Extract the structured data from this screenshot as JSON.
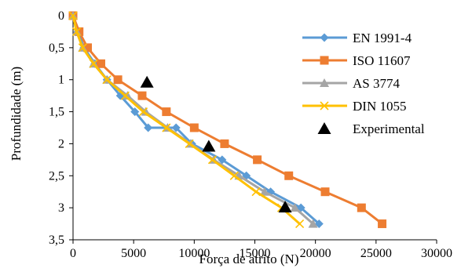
{
  "chart_data": {
    "type": "line",
    "title": "",
    "xlabel": "Força de atrito (N)",
    "ylabel": "Profundidade (m)",
    "xlim": [
      0,
      30000
    ],
    "ylim": [
      0,
      3.5
    ],
    "y_reversed": true,
    "grid": false,
    "legend_position": "right",
    "x_ticks": [
      "0",
      "5000",
      "10000",
      "15000",
      "20000",
      "25000",
      "30000"
    ],
    "y_ticks": [
      "0",
      "0,5",
      "1",
      "1,5",
      "2",
      "2,5",
      "3",
      "3,5"
    ],
    "series": [
      {
        "name": "EN 1991-4",
        "color": "#5B9BD5",
        "marker": "diamond",
        "points": [
          [
            0,
            0
          ],
          [
            400,
            0.25
          ],
          [
            900,
            0.5
          ],
          [
            1800,
            0.75
          ],
          [
            2800,
            1.0
          ],
          [
            3900,
            1.25
          ],
          [
            5100,
            1.5
          ],
          [
            6200,
            1.75
          ],
          [
            8500,
            1.75
          ],
          [
            9800,
            2.0
          ],
          [
            12300,
            2.25
          ],
          [
            14300,
            2.5
          ],
          [
            16300,
            2.75
          ],
          [
            18800,
            3.0
          ],
          [
            20300,
            3.25
          ]
        ]
      },
      {
        "name": "ISO 11607",
        "color": "#ED7D31",
        "marker": "square",
        "points": [
          [
            0,
            0
          ],
          [
            500,
            0.25
          ],
          [
            1200,
            0.5
          ],
          [
            2300,
            0.75
          ],
          [
            3700,
            1.0
          ],
          [
            5700,
            1.25
          ],
          [
            7700,
            1.5
          ],
          [
            10000,
            1.75
          ],
          [
            12500,
            2.0
          ],
          [
            15200,
            2.25
          ],
          [
            17800,
            2.5
          ],
          [
            20800,
            2.75
          ],
          [
            23800,
            3.0
          ],
          [
            25500,
            3.25
          ]
        ]
      },
      {
        "name": "AS 3774",
        "color": "#A5A5A5",
        "marker": "triangle",
        "points": [
          [
            0,
            0
          ],
          [
            300,
            0.25
          ],
          [
            800,
            0.5
          ],
          [
            1700,
            0.75
          ],
          [
            2800,
            1.0
          ],
          [
            4500,
            1.25
          ],
          [
            6000,
            1.5
          ],
          [
            7800,
            1.75
          ],
          [
            9700,
            2.0
          ],
          [
            11600,
            2.25
          ],
          [
            13700,
            2.5
          ],
          [
            15800,
            2.75
          ],
          [
            18300,
            3.0
          ],
          [
            19800,
            3.25
          ]
        ]
      },
      {
        "name": "DIN 1055",
        "color": "#FFC000",
        "marker": "x",
        "points": [
          [
            0,
            0
          ],
          [
            300,
            0.25
          ],
          [
            800,
            0.5
          ],
          [
            1700,
            0.75
          ],
          [
            2800,
            1.0
          ],
          [
            4300,
            1.25
          ],
          [
            5800,
            1.5
          ],
          [
            7700,
            1.75
          ],
          [
            9600,
            2.0
          ],
          [
            11500,
            2.25
          ],
          [
            13300,
            2.5
          ],
          [
            15100,
            2.75
          ],
          [
            17200,
            3.0
          ],
          [
            18700,
            3.25
          ]
        ]
      },
      {
        "name": "Experimental",
        "color": "#000000",
        "marker": "filled-triangle",
        "line": false,
        "points": [
          [
            6100,
            1.05
          ],
          [
            11200,
            2.05
          ],
          [
            17500,
            3.0
          ]
        ]
      }
    ]
  }
}
